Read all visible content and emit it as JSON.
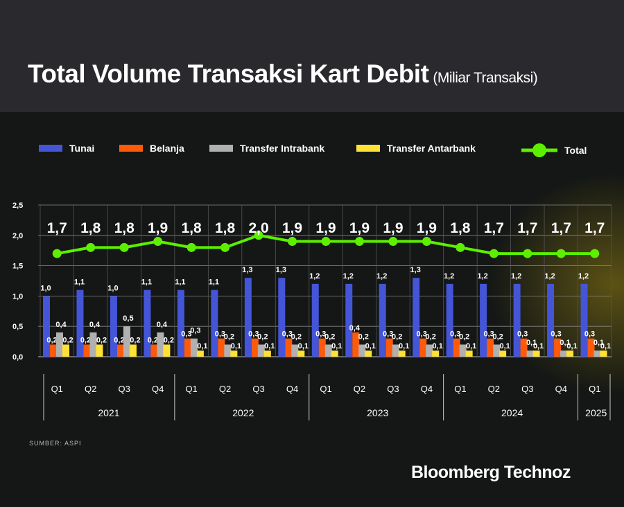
{
  "title": "Total Volume Transaksi Kart Debit",
  "subtitle": "(Miliar Transaksi)",
  "source": "SUMBER: ASPI",
  "brand": "Bloomberg Technoz",
  "chart_data": {
    "type": "bar",
    "title": "Total Volume Transaksi Kart Debit (Miliar Transaksi)",
    "categories": [
      "Q1",
      "Q2",
      "Q3",
      "Q4",
      "Q1",
      "Q2",
      "Q3",
      "Q4",
      "Q1",
      "Q2",
      "Q3",
      "Q4",
      "Q1",
      "Q2",
      "Q3",
      "Q4",
      "Q1"
    ],
    "years": [
      {
        "label": "2021",
        "span": 4
      },
      {
        "label": "2022",
        "span": 4
      },
      {
        "label": "2023",
        "span": 4
      },
      {
        "label": "2024",
        "span": 4
      },
      {
        "label": "2025",
        "span": 1
      }
    ],
    "yticks": [
      "0,0",
      "0,5",
      "1,0",
      "1,5",
      "2,0",
      "2,5"
    ],
    "ylim": [
      0,
      2.5
    ],
    "series": [
      {
        "name": "Tunai",
        "type": "bar",
        "color": "#4455d8",
        "values": [
          1.0,
          1.1,
          1.0,
          1.1,
          1.1,
          1.1,
          1.3,
          1.3,
          1.2,
          1.2,
          1.2,
          1.3,
          1.2,
          1.2,
          1.2,
          1.2,
          1.2
        ]
      },
      {
        "name": "Belanja",
        "type": "bar",
        "color": "#ff5a0a",
        "values": [
          0.2,
          0.2,
          0.2,
          0.2,
          0.3,
          0.3,
          0.3,
          0.3,
          0.3,
          0.4,
          0.3,
          0.3,
          0.3,
          0.3,
          0.3,
          0.3,
          0.3
        ]
      },
      {
        "name": "Transfer Intrabank",
        "type": "bar",
        "color": "#b0b0b0",
        "values": [
          0.4,
          0.4,
          0.5,
          0.4,
          0.3,
          0.2,
          0.2,
          0.2,
          0.2,
          0.2,
          0.2,
          0.2,
          0.2,
          0.2,
          0.1,
          0.1,
          0.1
        ]
      },
      {
        "name": "Transfer Antarbank",
        "type": "bar",
        "color": "#ffe236",
        "values": [
          0.2,
          0.2,
          0.2,
          0.2,
          0.1,
          0.1,
          0.1,
          0.1,
          0.1,
          0.1,
          0.1,
          0.1,
          0.1,
          0.1,
          0.1,
          0.1,
          0.1
        ]
      },
      {
        "name": "Total",
        "type": "line",
        "color": "#5cf000",
        "values": [
          1.7,
          1.8,
          1.8,
          1.9,
          1.8,
          1.8,
          2.0,
          1.9,
          1.9,
          1.9,
          1.9,
          1.9,
          1.8,
          1.7,
          1.7,
          1.7,
          1.7
        ]
      }
    ],
    "legend": "top"
  }
}
